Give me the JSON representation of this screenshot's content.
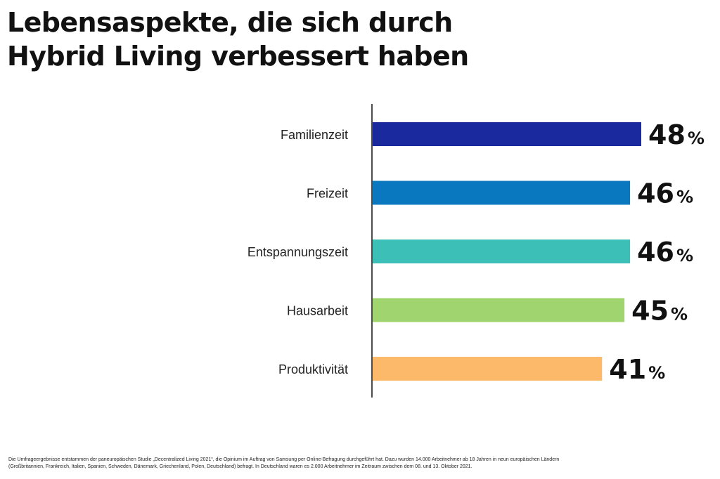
{
  "title_lines": [
    "Lebensaspekte, die sich durch",
    "Hybrid Living verbessert haben"
  ],
  "chart_data": {
    "type": "bar",
    "orientation": "horizontal",
    "title": "Lebensaspekte, die sich durch Hybrid Living verbessert haben",
    "categories": [
      "Familienzeit",
      "Freizeit",
      "Entspannungszeit",
      "Hausarbeit",
      "Produktivität"
    ],
    "values": [
      48,
      46,
      46,
      45,
      41
    ],
    "value_labels": [
      "48",
      "46",
      "46",
      "45",
      "41"
    ],
    "value_suffix": "%",
    "colors": [
      "#1a2a9e",
      "#0a78bf",
      "#3bbfb6",
      "#a0d46e",
      "#fdb96a"
    ],
    "xlim": [
      0,
      48
    ],
    "grid": false,
    "legend": "none"
  },
  "footnote_lines": [
    "Die Umfrageergebnisse entstammen der paneuropäischen Studie „Decentralized Living 2021“, die Opinium im Auftrag von Samsung per Online-Befragung durchgeführt hat. Dazu wurden 14.000 Arbeitnehmer ab 18 Jahren in neun europäischen Ländern",
    "(Großbritannien, Frankreich, Italien, Spanien, Schweden, Dänemark, Griechenland, Polen, Deutschland) befragt. In Deutschland waren es 2.000 Arbeitnehmer im Zeitraum zwischen dem 08. und 13. Oktober 2021."
  ]
}
